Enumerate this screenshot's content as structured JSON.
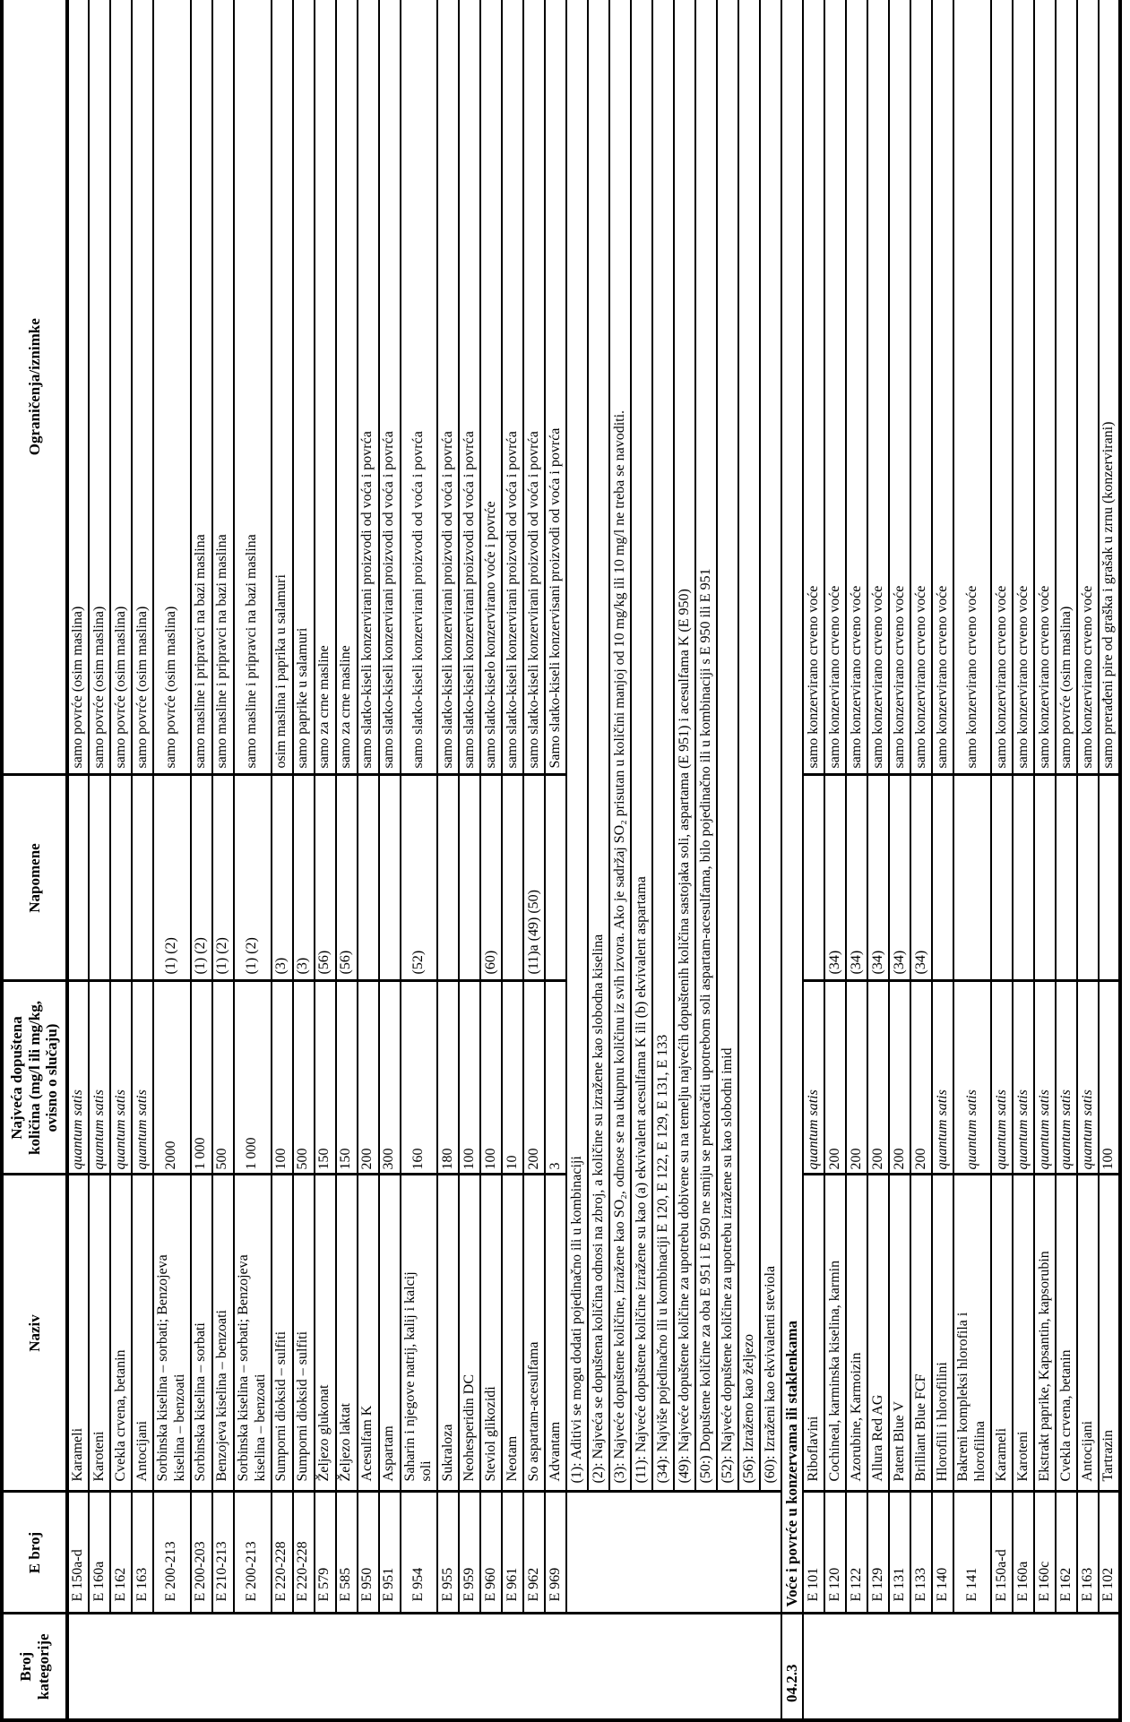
{
  "header": {
    "broj_kategorije": "Broj\nkategorije",
    "e_broj": "E broj",
    "naziv": "Naziv",
    "kolicina": "Najveća dopuštena\nkoličina (mg/l ili mg/kg,\novisno o slučaju)",
    "napomene": "Napomene",
    "ogranicenja": "Ograničenja/iznimke"
  },
  "rows": [
    {
      "type": "entry",
      "e": "E 150a-d",
      "name": "Karameli",
      "qty": "quantum satis",
      "note": "",
      "restriction": "samo povrće (osim maslina)"
    },
    {
      "type": "entry",
      "e": "E 160a",
      "name": "Karoteni",
      "qty": "quantum satis",
      "note": "",
      "restriction": "samo povrće (osim maslina)"
    },
    {
      "type": "entry",
      "e": "E 162",
      "name": "Cvekla crvena, betanin",
      "qty": "quantum satis",
      "note": "",
      "restriction": "samo povrće (osim maslina)"
    },
    {
      "type": "entry",
      "e": "E 163",
      "name": "Antocijani",
      "qty": "quantum satis",
      "note": "",
      "restriction": "samo povrće (osim maslina)"
    },
    {
      "type": "entry",
      "e": "E 200-213",
      "name": "Sorbinska kiselina – sorbati; Benzojeva\nkiselina – benzoati",
      "qty": "2000",
      "note": "(1) (2)",
      "restriction": "samo povrće (osim maslina)"
    },
    {
      "type": "entry",
      "e": "E 200-203",
      "name": "Sorbinska kiselina – sorbati",
      "qty": "1 000",
      "note": "(1) (2)",
      "restriction": "samo masline i pripravci na bazi maslina"
    },
    {
      "type": "entry",
      "e": "E 210-213",
      "name": "Benzojeva kiselina – benzoati",
      "qty": "500",
      "note": "(1) (2)",
      "restriction": "samo masline i pripravci na bazi maslina"
    },
    {
      "type": "entry",
      "e": "E 200-213",
      "name": "Sorbinska kiselina – sorbati; Benzojeva\nkiselina – benzoati",
      "qty": "1 000",
      "note": "(1) (2)",
      "restriction": "samo masline i pripravci na bazi maslina"
    },
    {
      "type": "entry",
      "e": "E 220-228",
      "name": "Sumporni dioksid – sulfiti",
      "qty": "100",
      "note": "(3)",
      "restriction": "osim maslina i paprika u salamuri"
    },
    {
      "type": "entry",
      "e": "E 220-228",
      "name": "Sumporni dioksid – sulfiti",
      "qty": "500",
      "note": "(3)",
      "restriction": "samo paprike u salamuri"
    },
    {
      "type": "entry",
      "e": "E 579",
      "name": "Željezo glukonat",
      "qty": "150",
      "note": "(56)",
      "restriction": "samo za crne masline"
    },
    {
      "type": "entry",
      "e": "E 585",
      "name": "Željezo laktat",
      "qty": "150",
      "note": "(56)",
      "restriction": "samo za crne masline"
    },
    {
      "type": "entry",
      "e": "E 950",
      "name": "Acesulfam K",
      "qty": "200",
      "note": "",
      "restriction": "samo slatko-kiseli konzervirani proizvodi od voća i povrća"
    },
    {
      "type": "entry",
      "e": "E 951",
      "name": "Aspartam",
      "qty": "300",
      "note": "",
      "restriction": "samo slatko-kiseli konzervirani proizvodi od voća i povrća"
    },
    {
      "type": "entry",
      "e": "E 954",
      "name": "Saharin i njegove natrij, kalij i kalcij\nsoli",
      "qty": "160",
      "note": "(52)",
      "restriction": "samo slatko-kiseli konzervirani proizvodi od voća i povrća"
    },
    {
      "type": "entry",
      "e": "E 955",
      "name": "Sukraloza",
      "qty": "180",
      "note": "",
      "restriction": "samo slatko-kiseli konzervirani proizvodi od voća i povrća"
    },
    {
      "type": "entry",
      "e": "E 959",
      "name": "Neohesperidin DC",
      "qty": "100",
      "note": "",
      "restriction": "samo slatko-kiseli konzervirani proizvodi od voća i povrća"
    },
    {
      "type": "entry",
      "e": "E 960",
      "name": "Steviol glikozidi",
      "qty": "100",
      "note": "(60)",
      "restriction": "samo slatko-kiselo konzervirano voće i povrće"
    },
    {
      "type": "entry",
      "e": "E 961",
      "name": "Neotam",
      "qty": "10",
      "note": "",
      "restriction": "samo slatko-kiseli konzervirani proizvodi od voća i povrća"
    },
    {
      "type": "entry",
      "e": "E 962",
      "name": "So aspartam-acesulfama",
      "qty": "200",
      "note": "(11)a (49) (50)",
      "restriction": "samo slatko-kiseli konzervirani proizvodi od voća i povrća"
    },
    {
      "type": "entry",
      "e": "E 969",
      "name": "Advantam",
      "qty": "3",
      "note": "",
      "restriction": "Samo slatko-kiseli konzervisani proizvodi od voća i povrća"
    },
    {
      "type": "footnote",
      "text": "(1): Aditivi se mogu dodati pojedinačno ili u kombinaciji"
    },
    {
      "type": "footnote",
      "text": "(2): Najveća se dopuštena količina odnosi na zbroj, a količine su izražene kao slobodna kiselina"
    },
    {
      "type": "footnote",
      "text": "(3): Najveće dopuštene količine, izražene kao SO₂, odnose se na ukupnu količinu iz svih izvora. Ako je sadržaj SO₂ prisutan u količini manjoj od 10 mg/kg ili 10 mg/l ne treba se navoditi."
    },
    {
      "type": "footnote",
      "text": "(11): Najveće dopuštene količine izražene su kao (a) ekvivalent acesulfama K ili (b) ekvivalent aspartama"
    },
    {
      "type": "footnote",
      "text": "(34): Najviše pojedinačno ili u kombinaciji E 120, E 122, E 129, E 131, E 133"
    },
    {
      "type": "footnote",
      "text": "(49): Najveće dopuštene količine za upotrebu dobivene su na temelju najvećih dopuštenih količina sastojaka soli, aspartama (E 951) i acesulfama K (E 950)"
    },
    {
      "type": "footnote",
      "text": "(50:) Dopuštene količine za oba E 951 i E 950 ne smiju se prekoračiti upotrebom soli aspartam-acesulfama, bilo pojedinačno ili u kombinaciji s E 950 ili E 951"
    },
    {
      "type": "footnote",
      "text": "(52): Najveće dopuštene količine za upotrebu izražene su kao slobodni imid"
    },
    {
      "type": "footnote",
      "text": "(56): Izraženo kao željezo"
    },
    {
      "type": "footnote",
      "text": "(60): Izraženi kao ekvivalenti steviola"
    },
    {
      "type": "section",
      "category": "04.2.3",
      "title": "Voće i povrće u konzervama ili staklenkama"
    },
    {
      "type": "entry",
      "e": "E 101",
      "name": "Riboflavini",
      "qty": "quantum satis",
      "note": "",
      "restriction": "samo konzervirano crveno voće"
    },
    {
      "type": "entry",
      "e": "E 120",
      "name": "Cochineal, karminska kiselina, karmin",
      "qty": "200",
      "note": "(34)",
      "restriction": "samo konzervirano crveno voće"
    },
    {
      "type": "entry",
      "e": "E 122",
      "name": "Azorubine, Karmoizin",
      "qty": "200",
      "note": "(34)",
      "restriction": "samo konzervirano crveno voće"
    },
    {
      "type": "entry",
      "e": "E 129",
      "name": "Allura Red AG",
      "qty": "200",
      "note": "(34)",
      "restriction": "samo konzervirano crveno voće"
    },
    {
      "type": "entry",
      "e": "E 131",
      "name": "Patent Blue V",
      "qty": "200",
      "note": "(34)",
      "restriction": "samo konzervirano crveno voće"
    },
    {
      "type": "entry",
      "e": "E 133",
      "name": "Brilliant Blue FCF",
      "qty": "200",
      "note": "(34)",
      "restriction": "samo konzervirano crveno voće"
    },
    {
      "type": "entry",
      "e": "E 140",
      "name": "Hlorofili i hlorofilini",
      "qty": "quantum satis",
      "note": "",
      "restriction": "samo konzervirano crveno voće"
    },
    {
      "type": "entry",
      "e": "E 141",
      "name": "Bakreni kompleksi hlorofila i\nhlorofilina",
      "qty": "quantum satis",
      "note": "",
      "restriction": "samo konzervirano crveno voće"
    },
    {
      "type": "entry",
      "e": "E 150a-d",
      "name": "Karameli",
      "qty": "quantum satis",
      "note": "",
      "restriction": "samo konzervirano crveno voće"
    },
    {
      "type": "entry",
      "e": "E 160a",
      "name": "Karoteni",
      "qty": "quantum satis",
      "note": "",
      "restriction": "samo konzervirano crveno voće"
    },
    {
      "type": "entry",
      "e": "E 160c",
      "name": "Ekstrakt paprike, Kapsantin, kapsorubin",
      "qty": "quantum satis",
      "note": "",
      "restriction": "samo konzervirano crveno voće"
    },
    {
      "type": "entry",
      "e": "E 162",
      "name": "Cvekla crvena, betanin",
      "qty": "quantum satis",
      "note": "",
      "restriction": "samo povrće (osim maslina)"
    },
    {
      "type": "entry",
      "e": "E 163",
      "name": "Antocijani",
      "qty": "quantum satis",
      "note": "",
      "restriction": "samo konzervirano crveno voće"
    },
    {
      "type": "entry",
      "e": "E 102",
      "name": "Tartrazin",
      "qty": "100",
      "note": "",
      "restriction": "samo prerađeni pire od graška i grašak u zrnu (konzervirani)"
    }
  ]
}
